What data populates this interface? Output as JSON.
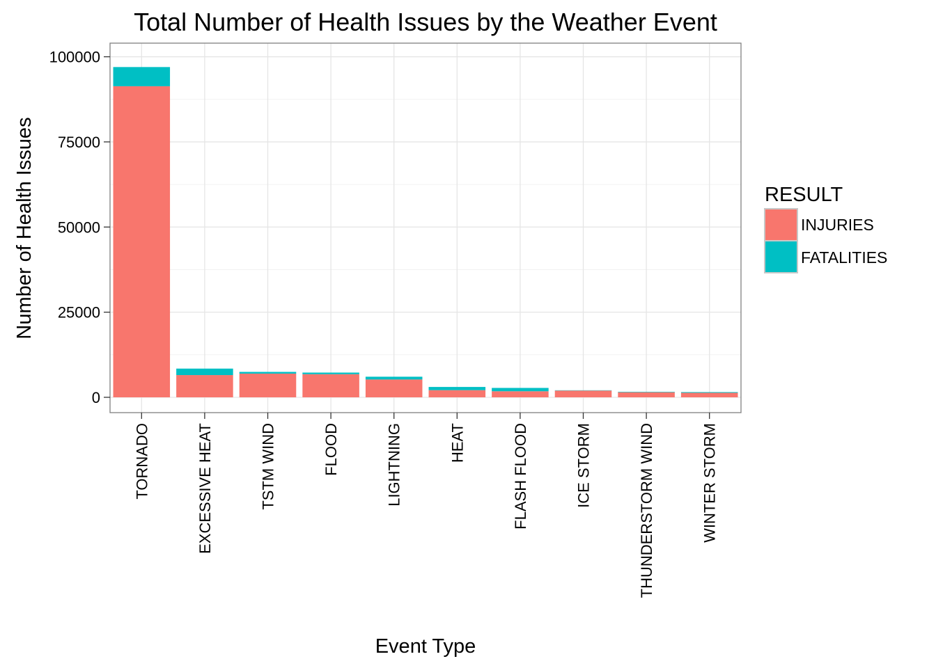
{
  "chart_data": {
    "type": "bar",
    "stacked": true,
    "title": "Total Number of Health Issues by the Weather Event",
    "xlabel": "Event Type",
    "ylabel": "Number of Health Issues",
    "categories": [
      "TORNADO",
      "EXCESSIVE HEAT",
      "TSTM WIND",
      "FLOOD",
      "LIGHTNING",
      "HEAT",
      "FLASH FLOOD",
      "ICE STORM",
      "THUNDERSTORM WIND",
      "WINTER STORM"
    ],
    "series": [
      {
        "name": "INJURIES",
        "color": "#F8766D",
        "values": [
          91346,
          6525,
          6957,
          6789,
          5230,
          2100,
          1777,
          1975,
          1488,
          1321
        ]
      },
      {
        "name": "FATALITIES",
        "color": "#00BFC4",
        "values": [
          5633,
          1903,
          504,
          470,
          816,
          937,
          978,
          89,
          133,
          206
        ]
      }
    ],
    "ylim": [
      -4500,
      104000
    ],
    "yticks": [
      0,
      25000,
      50000,
      75000,
      100000
    ],
    "ytick_labels": [
      "0",
      "25000",
      "50000",
      "75000",
      "100000"
    ],
    "legend": {
      "title": "RESULT",
      "position": "right"
    },
    "grid": true
  }
}
